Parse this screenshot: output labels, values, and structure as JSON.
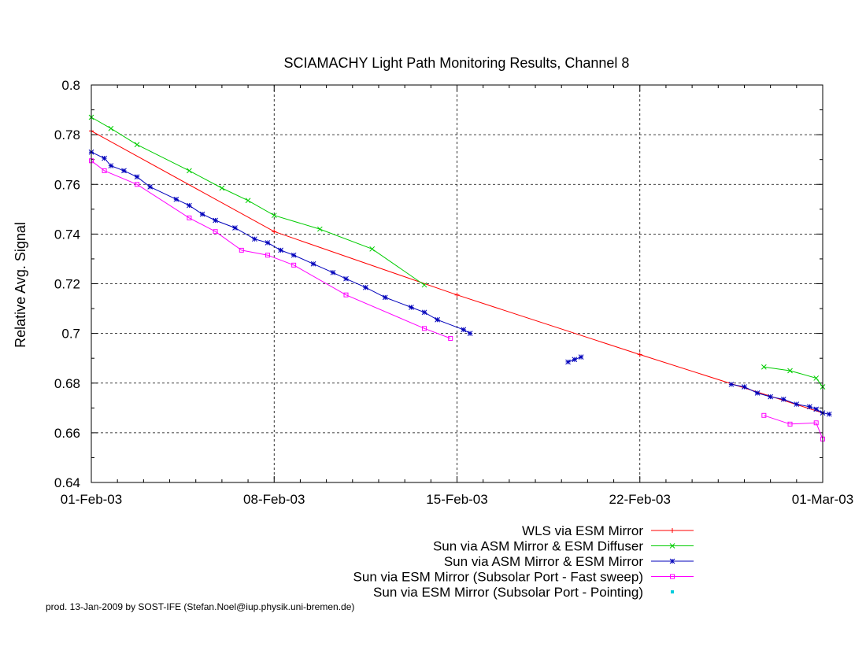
{
  "chart_data": {
    "type": "line",
    "title": "SCIAMACHY Light Path Monitoring Results, Channel 8",
    "xlabel": "",
    "ylabel": "Relative Avg. Signal",
    "x_is_date": true,
    "xlim": [
      "2003-02-01",
      "2003-03-01"
    ],
    "ylim": [
      0.64,
      0.8
    ],
    "x_ticks": [
      {
        "date": "2003-02-01",
        "label": "01-Feb-03"
      },
      {
        "date": "2003-02-08",
        "label": "08-Feb-03"
      },
      {
        "date": "2003-02-15",
        "label": "15-Feb-03"
      },
      {
        "date": "2003-02-22",
        "label": "22-Feb-03"
      },
      {
        "date": "2003-03-01",
        "label": "01-Mar-03"
      }
    ],
    "y_ticks": [
      "0.64",
      "0.66",
      "0.68",
      "0.7",
      "0.72",
      "0.74",
      "0.76",
      "0.78",
      "0.8"
    ],
    "grid": "dashed at major ticks",
    "legend_position": "below plot, right-aligned",
    "series": [
      {
        "name": "WLS via ESM Mirror",
        "color": "#ff0000",
        "marker": "plus",
        "points": [
          [
            "2003-02-01",
            0.7815
          ],
          [
            "2003-02-08",
            0.741
          ],
          [
            "2003-02-15",
            0.7155
          ],
          [
            "2003-02-22",
            0.6915
          ],
          [
            "2003-03-01",
            0.668
          ]
        ]
      },
      {
        "name": "Sun via ASM Mirror & ESM Diffuser",
        "color": "#00cc00",
        "marker": "x",
        "segments": [
          [
            [
              "2003-02-01",
              0.787
            ],
            [
              "2003-02-01 18:00",
              0.7825
            ],
            [
              "2003-02-02 18:00",
              0.776
            ],
            [
              "2003-02-04 18:00",
              0.7655
            ],
            [
              "2003-02-06 00:00",
              0.7585
            ],
            [
              "2003-02-07 00:00",
              0.7535
            ],
            [
              "2003-02-08 00:00",
              0.7475
            ],
            [
              "2003-02-09 18:00",
              0.742
            ],
            [
              "2003-02-11 18:00",
              0.734
            ],
            [
              "2003-02-13 18:00",
              0.7195
            ]
          ],
          [
            [
              "2003-02-26 18:00",
              0.6865
            ],
            [
              "2003-02-27 18:00",
              0.685
            ],
            [
              "2003-02-28 18:00",
              0.682
            ],
            [
              "2003-03-01 00:00",
              0.6785
            ]
          ]
        ]
      },
      {
        "name": "Sun via ASM Mirror & ESM Mirror",
        "color": "#0000bb",
        "marker": "star",
        "segments": [
          [
            [
              "2003-02-01",
              0.773
            ],
            [
              "2003-02-01 12:00",
              0.7705
            ],
            [
              "2003-02-01 18:00",
              0.7675
            ],
            [
              "2003-02-02 06:00",
              0.7655
            ],
            [
              "2003-02-02 18:00",
              0.763
            ],
            [
              "2003-02-03 06:00",
              0.759
            ],
            [
              "2003-02-04 06:00",
              0.754
            ],
            [
              "2003-02-04 18:00",
              0.7515
            ],
            [
              "2003-02-05 06:00",
              0.748
            ],
            [
              "2003-02-05 18:00",
              0.7455
            ],
            [
              "2003-02-06 12:00",
              0.7425
            ],
            [
              "2003-02-07 06:00",
              0.738
            ],
            [
              "2003-02-07 18:00",
              0.7365
            ],
            [
              "2003-02-08 06:00",
              0.7335
            ],
            [
              "2003-02-08 18:00",
              0.7315
            ],
            [
              "2003-02-09 12:00",
              0.728
            ],
            [
              "2003-02-10 06:00",
              0.7245
            ],
            [
              "2003-02-10 18:00",
              0.722
            ],
            [
              "2003-02-11 12:00",
              0.7185
            ],
            [
              "2003-02-12 06:00",
              0.7145
            ],
            [
              "2003-02-13 06:00",
              0.7105
            ],
            [
              "2003-02-13 18:00",
              0.7085
            ],
            [
              "2003-02-14 06:00",
              0.7055
            ],
            [
              "2003-02-15 06:00",
              0.7015
            ],
            [
              "2003-02-15 12:00",
              0.7
            ]
          ],
          [
            [
              "2003-02-19 06:00",
              0.6885
            ],
            [
              "2003-02-19 12:00",
              0.6895
            ],
            [
              "2003-02-19 18:00",
              0.6905
            ]
          ],
          [
            [
              "2003-02-25 12:00",
              0.6795
            ],
            [
              "2003-02-26 00:00",
              0.6785
            ],
            [
              "2003-02-26 12:00",
              0.676
            ],
            [
              "2003-02-27 00:00",
              0.6745
            ],
            [
              "2003-02-27 12:00",
              0.6735
            ],
            [
              "2003-02-28 00:00",
              0.6715
            ],
            [
              "2003-02-28 12:00",
              0.6705
            ],
            [
              "2003-02-28 18:00",
              0.6695
            ],
            [
              "2003-03-01 00:00",
              0.668
            ],
            [
              "2003-03-01 06:00",
              0.6675
            ]
          ]
        ]
      },
      {
        "name": "Sun via ESM Mirror (Subsolar Port - Fast sweep)",
        "color": "#ff00ff",
        "marker": "square",
        "segments": [
          [
            [
              "2003-02-01",
              0.7695
            ],
            [
              "2003-02-01 12:00",
              0.7655
            ],
            [
              "2003-02-02 18:00",
              0.76
            ],
            [
              "2003-02-04 18:00",
              0.7465
            ],
            [
              "2003-02-05 18:00",
              0.741
            ],
            [
              "2003-02-06 18:00",
              0.7335
            ],
            [
              "2003-02-07 18:00",
              0.7315
            ],
            [
              "2003-02-08 18:00",
              0.7275
            ],
            [
              "2003-02-10 18:00",
              0.7155
            ],
            [
              "2003-02-13 18:00",
              0.702
            ],
            [
              "2003-02-14 18:00",
              0.698
            ]
          ],
          [
            [
              "2003-02-26 18:00",
              0.667
            ],
            [
              "2003-02-27 18:00",
              0.6635
            ],
            [
              "2003-02-28 18:00",
              0.664
            ],
            [
              "2003-03-01 00:00",
              0.6575
            ]
          ]
        ]
      },
      {
        "name": "Sun via ESM Mirror (Subsolar Port - Pointing)",
        "color": "#00ccdd",
        "marker": "filled-square",
        "segments": []
      }
    ]
  },
  "footer": {
    "credit": "prod. 13-Jan-2009 by SOST-IFE (Stefan.Noel@iup.physik.uni-bremen.de)"
  }
}
